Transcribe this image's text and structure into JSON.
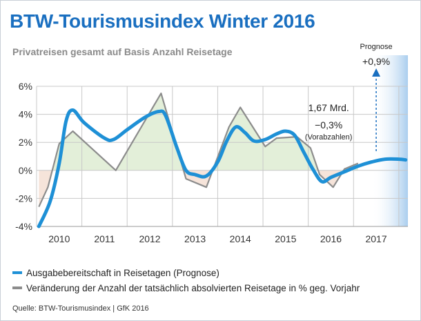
{
  "title": "BTW-Tourismusindex Winter 2016",
  "subtitle": "Privatreisen gesamt auf Basis Anzahl Reisetage",
  "source": "Quelle: BTW-Tourismusindex | GfK 2016",
  "colors": {
    "title": "#1a6fc0",
    "blue_series": "#1e90d6",
    "gray_series": "#8c8c8c",
    "positive_fill": "#e3efd9",
    "negative_fill": "#f6e4da",
    "forecast_shade": "#a9cdee",
    "grid": "#c8c8c8"
  },
  "chart_data": {
    "type": "line",
    "x_unit": "year",
    "ylim": [
      -4,
      6
    ],
    "y_ticks": [
      -4,
      -2,
      0,
      2,
      4,
      6
    ],
    "y_tick_labels": [
      "-4%",
      "-2%",
      "0%",
      "2%",
      "4%",
      "6%"
    ],
    "x_tick_labels": [
      "2010",
      "2011",
      "2012",
      "2013",
      "2014",
      "2015",
      "2016",
      "2017"
    ],
    "grid": true,
    "legend_position": "bottom",
    "series": [
      {
        "name": "Ausgabebereitschaft in Reisetagen (Prognose)",
        "style": "smooth",
        "color": "#1e90d6",
        "points": [
          [
            2009.55,
            -4.0
          ],
          [
            2009.8,
            -2.2
          ],
          [
            2010.0,
            0.5
          ],
          [
            2010.15,
            3.5
          ],
          [
            2010.3,
            4.3
          ],
          [
            2010.55,
            3.4
          ],
          [
            2011.0,
            2.3
          ],
          [
            2011.2,
            2.2
          ],
          [
            2011.5,
            2.9
          ],
          [
            2011.9,
            3.8
          ],
          [
            2012.2,
            4.2
          ],
          [
            2012.35,
            3.9
          ],
          [
            2012.6,
            1.6
          ],
          [
            2012.8,
            0.0
          ],
          [
            2013.0,
            -0.3
          ],
          [
            2013.25,
            -0.4
          ],
          [
            2013.5,
            0.6
          ],
          [
            2013.7,
            2.1
          ],
          [
            2013.9,
            3.1
          ],
          [
            2014.1,
            2.7
          ],
          [
            2014.3,
            2.1
          ],
          [
            2014.55,
            2.2
          ],
          [
            2014.8,
            2.6
          ],
          [
            2015.0,
            2.8
          ],
          [
            2015.2,
            2.5
          ],
          [
            2015.4,
            1.3
          ],
          [
            2015.6,
            0.1
          ],
          [
            2015.8,
            -0.8
          ],
          [
            2016.0,
            -0.5
          ],
          [
            2016.3,
            -0.1
          ],
          [
            2016.6,
            0.3
          ],
          [
            2016.9,
            0.6
          ],
          [
            2017.2,
            0.8
          ],
          [
            2017.5,
            0.8
          ],
          [
            2017.65,
            0.75
          ]
        ]
      },
      {
        "name": "Veränderung der Anzahl der tatsächlich absolvierten Reisetage in % geg. Vorjahr",
        "style": "straight",
        "color": "#8c8c8c",
        "points": [
          [
            2009.55,
            -2.6
          ],
          [
            2009.75,
            -1.2
          ],
          [
            2010.0,
            1.9
          ],
          [
            2010.3,
            2.8
          ],
          [
            2011.25,
            0.0
          ],
          [
            2012.25,
            5.5
          ],
          [
            2012.8,
            -0.6
          ],
          [
            2013.25,
            -1.2
          ],
          [
            2013.75,
            3.1
          ],
          [
            2014.0,
            4.5
          ],
          [
            2014.55,
            1.7
          ],
          [
            2014.8,
            2.3
          ],
          [
            2015.25,
            2.4
          ],
          [
            2015.55,
            1.6
          ],
          [
            2015.75,
            -0.3
          ],
          [
            2016.05,
            -1.2
          ],
          [
            2016.3,
            0.1
          ],
          [
            2016.6,
            0.5
          ]
        ]
      }
    ],
    "forecast_region": {
      "start": 2016.9,
      "end": 2017.65
    },
    "annotations": {
      "stats_line1": "1,67 Mrd.",
      "stats_line2": "−0,3%",
      "stats_line3": "(Vorabzahlen)",
      "forecast_label": "Prognose",
      "forecast_value": "+0,9%"
    }
  },
  "legend": [
    {
      "label": "Ausgabebereitschaft in Reisetagen (Prognose)",
      "color": "#1e90d6"
    },
    {
      "label": "Veränderung der Anzahl der tatsächlich absolvierten Reisetage in % geg. Vorjahr",
      "color": "#8c8c8c"
    }
  ]
}
